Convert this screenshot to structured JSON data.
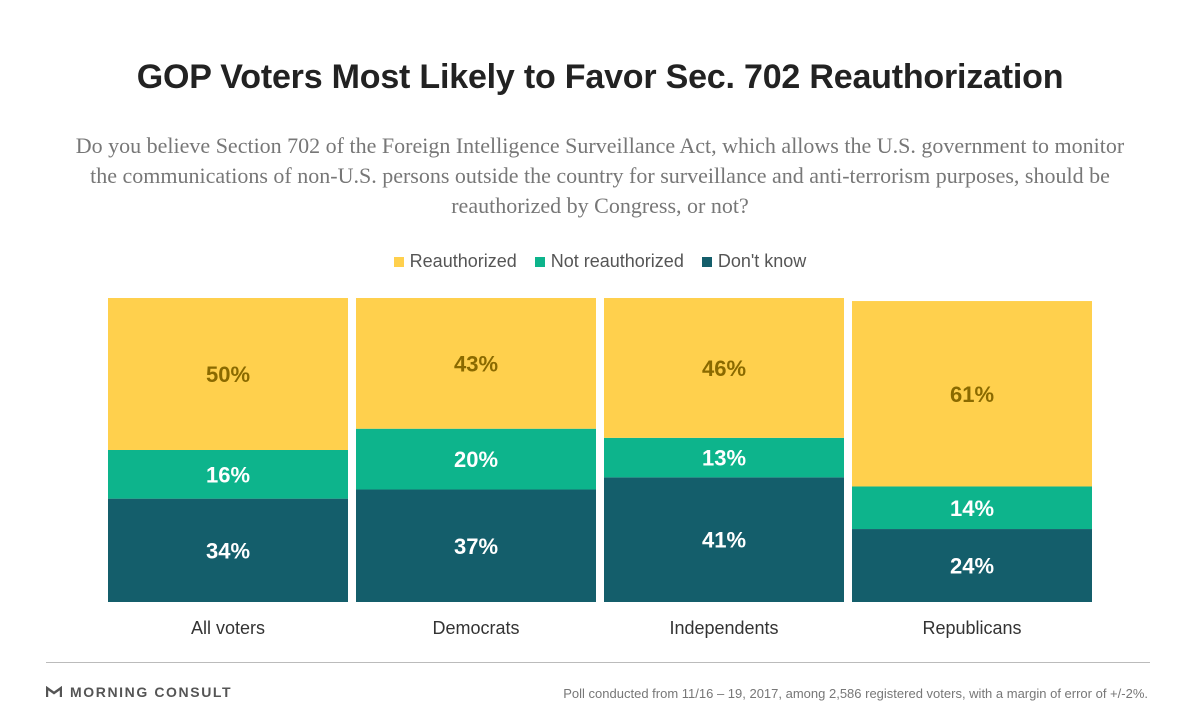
{
  "header": {
    "title": "GOP Voters Most Likely to Favor Sec. 702 Reauthorization",
    "subtitle": "Do you believe Section 702 of the Foreign Intelligence Surveillance Act, which allows the U.S. government to monitor the communications of non-U.S. persons outside the country for surveillance and anti-terrorism purposes, should be reauthorized by Congress, or not?"
  },
  "colors": {
    "reauthorized": "#FFD04D",
    "not_reauthorized": "#0DB48C",
    "dont_know": "#145E6B",
    "label_on_yellow": "#8A6A00",
    "label_on_dark": "#FFFFFF"
  },
  "chart_data": {
    "type": "bar",
    "stacked": true,
    "normalized_percent": true,
    "categories": [
      "All voters",
      "Democrats",
      "Independents",
      "Republicans"
    ],
    "series": [
      {
        "name": "Don't know",
        "values": [
          34,
          37,
          41,
          24
        ],
        "labels": [
          "34%",
          "37%",
          "41%",
          "24%"
        ],
        "color": "#145E6B"
      },
      {
        "name": "Not reauthorized",
        "values": [
          16,
          20,
          13,
          14
        ],
        "labels": [
          "16%",
          "20%",
          "13%",
          "14%"
        ],
        "color": "#0DB48C"
      },
      {
        "name": "Reauthorized",
        "values": [
          50,
          43,
          46,
          61
        ],
        "labels": [
          "50%",
          "43%",
          "46%",
          "61%"
        ],
        "color": "#FFD04D"
      }
    ],
    "legend": [
      "Reauthorized",
      "Not reauthorized",
      "Don't know"
    ],
    "legend_position": "top-center",
    "ylim": [
      0,
      100
    ],
    "grid": false
  },
  "footer": {
    "brand": "MORNING CONSULT",
    "note": "Poll conducted from 11/16 – 19, 2017, among 2,586 registered voters, with a margin of error of +/-2%."
  }
}
